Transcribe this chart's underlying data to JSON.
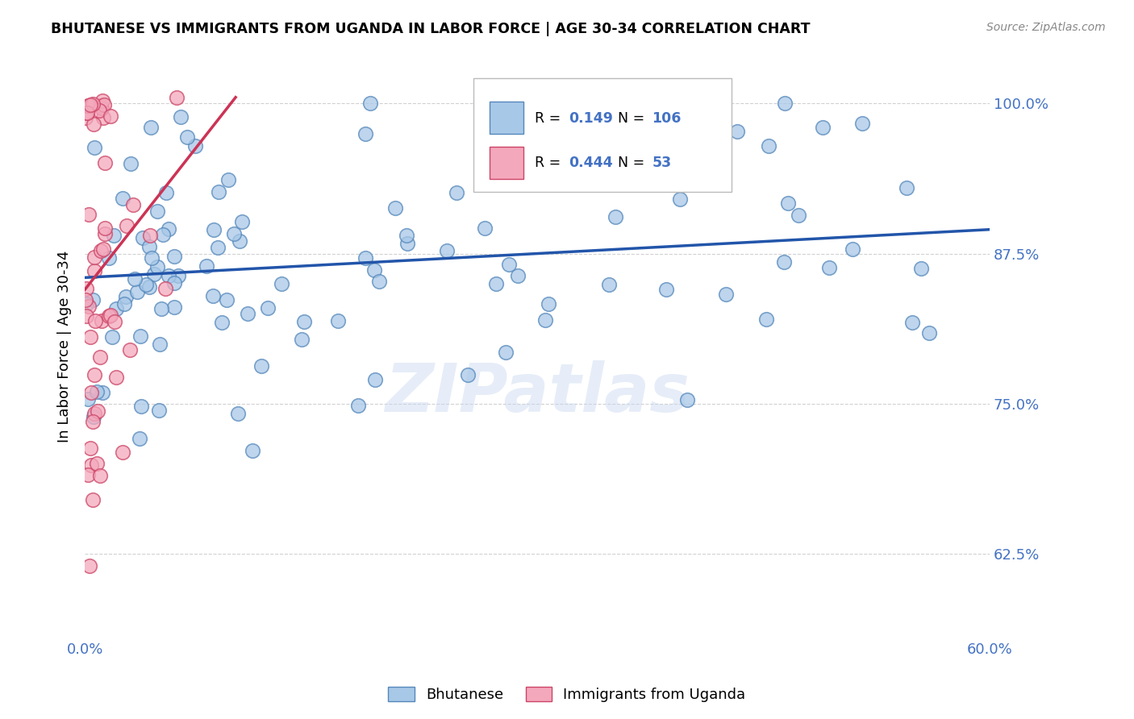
{
  "title": "BHUTANESE VS IMMIGRANTS FROM UGANDA IN LABOR FORCE | AGE 30-34 CORRELATION CHART",
  "source_text": "Source: ZipAtlas.com",
  "ylabel": "In Labor Force | Age 30-34",
  "x_min": 0.0,
  "x_max": 0.6,
  "y_min": 0.555,
  "y_max": 1.04,
  "x_tick_positions": [
    0.0,
    0.1,
    0.2,
    0.3,
    0.4,
    0.5,
    0.6
  ],
  "x_tick_labels": [
    "0.0%",
    "",
    "",
    "",
    "",
    "",
    "60.0%"
  ],
  "y_ticks": [
    0.625,
    0.75,
    0.875,
    1.0
  ],
  "y_tick_labels": [
    "62.5%",
    "75.0%",
    "87.5%",
    "100.0%"
  ],
  "blue_R": 0.149,
  "blue_N": 106,
  "pink_R": 0.444,
  "pink_N": 53,
  "blue_color": "#a8c8e8",
  "pink_color": "#f4a8bc",
  "blue_edge_color": "#5588bb",
  "pink_edge_color": "#cc4466",
  "blue_line_color": "#2255aa",
  "pink_line_color": "#cc3355",
  "grid_color": "#cccccc",
  "tick_color": "#4472c4",
  "watermark": "ZIPatlas",
  "legend_R1": "0.149",
  "legend_N1": "106",
  "legend_R2": "0.444",
  "legend_N2": "53",
  "blue_trend_x0": 0.0,
  "blue_trend_x1": 0.6,
  "blue_trend_y0": 0.855,
  "blue_trend_y1": 0.895,
  "pink_trend_x0": 0.0,
  "pink_trend_x1": 0.1,
  "pink_trend_y0": 0.845,
  "pink_trend_y1": 1.005
}
